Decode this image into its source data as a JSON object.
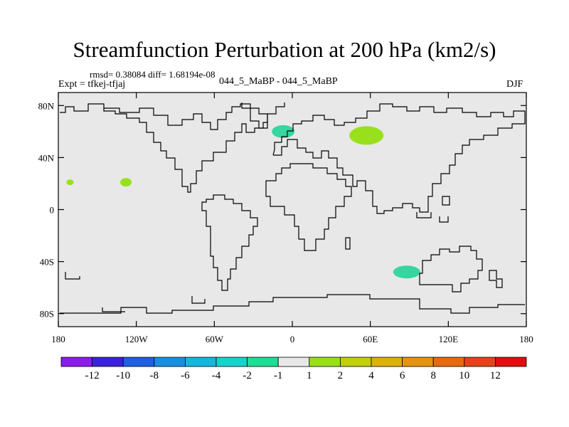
{
  "header": {
    "title": "Streamfunction Perturbation at 200 hPa (km2/s)",
    "stats": "rmsd= 0.38084 diff= 1.68194e-08",
    "experiment": "Expt = tfkej-tfjaj",
    "case_id": "044_5_MaBP - 044_5_MaBP",
    "season": "DJF"
  },
  "map": {
    "background_color": "#e8e8e8",
    "coastline_color": "#000000",
    "lat_range": [
      -90,
      90
    ],
    "lon_range": [
      -180,
      180
    ],
    "lat_ticks": [
      {
        "value": 80,
        "label": "80N"
      },
      {
        "value": 40,
        "label": "40N"
      },
      {
        "value": 0,
        "label": "0"
      },
      {
        "value": -40,
        "label": "40S"
      },
      {
        "value": -80,
        "label": "80S"
      }
    ],
    "lon_ticks": [
      {
        "value": -180,
        "label": "180"
      },
      {
        "value": -120,
        "label": "120W"
      },
      {
        "value": -60,
        "label": "60W"
      },
      {
        "value": 0,
        "label": "0"
      },
      {
        "value": 60,
        "label": "60E"
      },
      {
        "value": 120,
        "label": "120E"
      },
      {
        "value": 180,
        "label": "180"
      }
    ],
    "anomalies": [
      {
        "lon": -7,
        "lat": 60,
        "color": "#36d6a0",
        "sign": "negative"
      },
      {
        "lon": 57,
        "lat": 57,
        "color": "#99e01c",
        "sign": "positive"
      },
      {
        "lon": -128,
        "lat": 21,
        "color": "#99e01c",
        "sign": "positive"
      },
      {
        "lon": -171,
        "lat": 21,
        "color": "#99e01c",
        "sign": "positive"
      },
      {
        "lon": 88,
        "lat": -48,
        "color": "#36d6a0",
        "sign": "negative"
      }
    ]
  },
  "colorbar": {
    "colors": [
      "#8a1de8",
      "#3a22d8",
      "#1f5fe0",
      "#1a8fe0",
      "#15b6dc",
      "#1ad2cc",
      "#20dc95",
      "#e8e8e8",
      "#99e01c",
      "#c2cf0c",
      "#dcb20a",
      "#e49410",
      "#e66a10",
      "#e4421a",
      "#e00e0e"
    ],
    "labels": [
      "-12",
      "-10",
      "-8",
      "-6",
      "-4",
      "-2",
      "-1",
      "1",
      "2",
      "4",
      "6",
      "8",
      "10",
      "12"
    ]
  }
}
